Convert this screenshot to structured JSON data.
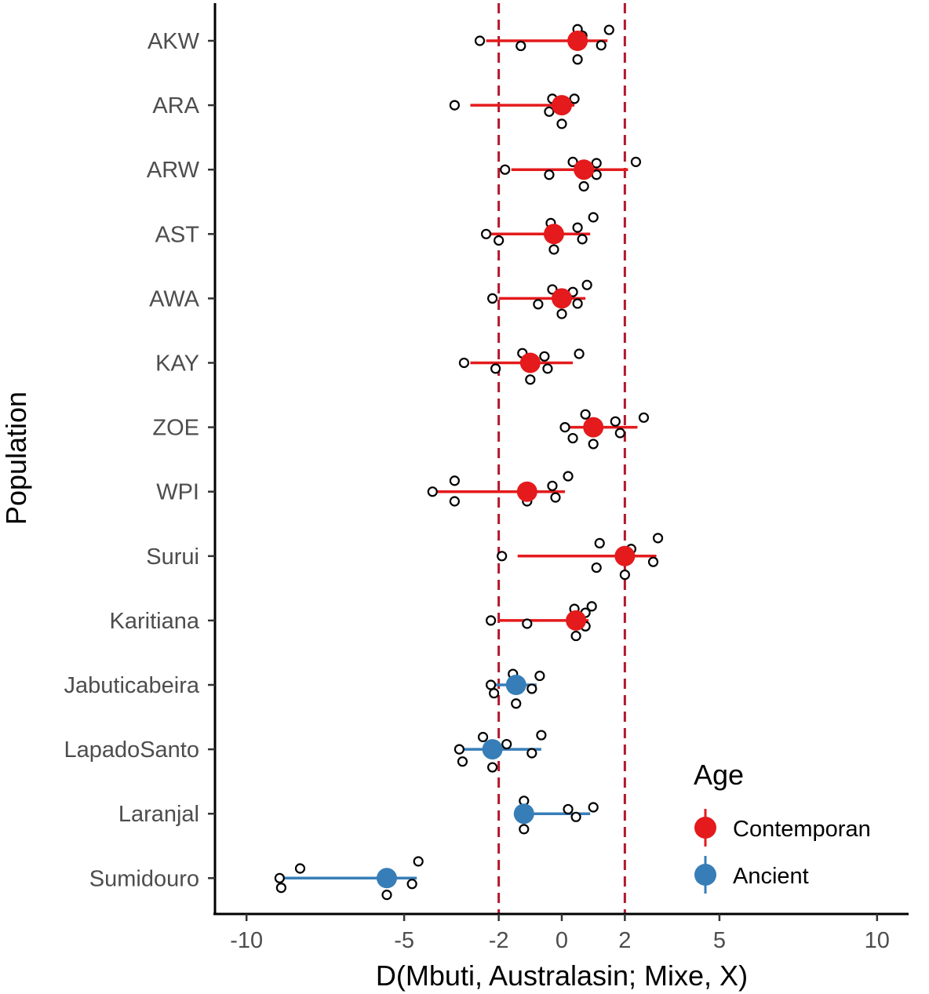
{
  "chart_data": {
    "type": "scatter",
    "xlabel": "D(Mbuti, Australasin; Mixe, X)",
    "ylabel": "Population",
    "xlim": [
      -11,
      11
    ],
    "xticks": [
      -10,
      -5,
      -2,
      0,
      2,
      5,
      10
    ],
    "xtick_labels": [
      "-10",
      "-5",
      "-2",
      "0",
      "2",
      "5",
      "10"
    ],
    "reference_lines": [
      -2,
      2
    ],
    "legend": {
      "title": "Age",
      "placement": "bottom-right",
      "entries": [
        {
          "label": "Contemporan",
          "color": "#e41a1c"
        },
        {
          "label": "Ancient",
          "color": "#377eb8"
        }
      ]
    },
    "populations": [
      {
        "name": "AKW",
        "age": "Contemporan",
        "mean": 0.5,
        "low": -2.4,
        "high": 1.45,
        "points": [
          [
            -2.6,
            0
          ],
          [
            -1.3,
            -0.08
          ],
          [
            0.5,
            0.18
          ],
          [
            0.65,
            0.08
          ],
          [
            1.5,
            0.17
          ],
          [
            1.25,
            -0.07
          ],
          [
            0.5,
            -0.29
          ]
        ]
      },
      {
        "name": "ARA",
        "age": "Contemporan",
        "mean": 0.0,
        "low": -2.9,
        "high": 0.4,
        "points": [
          [
            -3.4,
            0
          ],
          [
            -0.4,
            -0.1
          ],
          [
            -0.3,
            0.1
          ],
          [
            0.4,
            0.1
          ],
          [
            0.0,
            -0.29
          ]
        ]
      },
      {
        "name": "ARW",
        "age": "Contemporan",
        "mean": 0.7,
        "low": -1.6,
        "high": 2.1,
        "points": [
          [
            -1.8,
            0
          ],
          [
            -0.4,
            -0.08
          ],
          [
            0.35,
            0.12
          ],
          [
            1.1,
            0.1
          ],
          [
            2.35,
            0.12
          ],
          [
            1.1,
            -0.08
          ],
          [
            0.7,
            -0.26
          ]
        ]
      },
      {
        "name": "AST",
        "age": "Contemporan",
        "mean": -0.25,
        "low": -2.3,
        "high": 0.9,
        "points": [
          [
            -2.4,
            0
          ],
          [
            -2.0,
            -0.1
          ],
          [
            -0.35,
            0.17
          ],
          [
            0.5,
            0.1
          ],
          [
            1.0,
            0.26
          ],
          [
            0.65,
            -0.08
          ],
          [
            -0.25,
            -0.24
          ]
        ]
      },
      {
        "name": "AWA",
        "age": "Contemporan",
        "mean": 0.0,
        "low": -2.0,
        "high": 0.75,
        "points": [
          [
            -2.2,
            0
          ],
          [
            -0.75,
            -0.09
          ],
          [
            -0.3,
            0.14
          ],
          [
            0.35,
            0.1
          ],
          [
            0.8,
            0.21
          ],
          [
            0.5,
            -0.08
          ],
          [
            0.0,
            -0.24
          ]
        ]
      },
      {
        "name": "KAY",
        "age": "Contemporan",
        "mean": -1.0,
        "low": -2.9,
        "high": 0.35,
        "points": [
          [
            -3.1,
            0
          ],
          [
            -2.1,
            -0.09
          ],
          [
            -1.25,
            0.15
          ],
          [
            -0.55,
            0.1
          ],
          [
            0.55,
            0.14
          ],
          [
            -0.45,
            -0.09
          ],
          [
            -1.0,
            -0.26
          ]
        ]
      },
      {
        "name": "ZOE",
        "age": "Contemporan",
        "mean": 1.0,
        "low": 0.1,
        "high": 2.4,
        "points": [
          [
            0.1,
            0
          ],
          [
            0.35,
            -0.17
          ],
          [
            0.75,
            0.2
          ],
          [
            1.7,
            0.09
          ],
          [
            2.6,
            0.15
          ],
          [
            1.85,
            -0.09
          ],
          [
            1.0,
            -0.26
          ]
        ]
      },
      {
        "name": "WPI",
        "age": "Contemporan",
        "mean": -1.1,
        "low": -4.0,
        "high": 0.1,
        "points": [
          [
            -4.1,
            0
          ],
          [
            -3.4,
            0.17
          ],
          [
            -3.4,
            -0.15
          ],
          [
            -0.3,
            0.09
          ],
          [
            0.2,
            0.24
          ],
          [
            -0.2,
            -0.09
          ],
          [
            -1.1,
            -0.15
          ]
        ]
      },
      {
        "name": "Surui",
        "age": "Contemporan",
        "mean": 2.0,
        "low": -1.4,
        "high": 3.0,
        "points": [
          [
            -1.9,
            0
          ],
          [
            1.2,
            0.2
          ],
          [
            2.2,
            0.11
          ],
          [
            3.05,
            0.28
          ],
          [
            2.9,
            -0.09
          ],
          [
            1.1,
            -0.18
          ],
          [
            2.0,
            -0.29
          ]
        ]
      },
      {
        "name": "Karitiana",
        "age": "Contemporan",
        "mean": 0.45,
        "low": -2.0,
        "high": 0.85,
        "points": [
          [
            -2.25,
            0
          ],
          [
            -1.1,
            -0.05
          ],
          [
            0.4,
            0.18
          ],
          [
            0.75,
            0.12
          ],
          [
            0.95,
            0.22
          ],
          [
            0.75,
            -0.09
          ],
          [
            0.45,
            -0.24
          ]
        ]
      },
      {
        "name": "Jabuticabeira",
        "age": "Ancient",
        "mean": -1.45,
        "low": -2.2,
        "high": -0.8,
        "points": [
          [
            -2.25,
            0
          ],
          [
            -2.15,
            -0.13
          ],
          [
            -1.55,
            0.17
          ],
          [
            -0.7,
            0.14
          ],
          [
            -0.95,
            -0.06
          ],
          [
            -1.45,
            -0.29
          ]
        ]
      },
      {
        "name": "LapadoSanto",
        "age": "Ancient",
        "mean": -2.2,
        "low": -3.2,
        "high": -0.65,
        "points": [
          [
            -3.25,
            0
          ],
          [
            -3.15,
            -0.19
          ],
          [
            -2.5,
            0.19
          ],
          [
            -1.75,
            0.08
          ],
          [
            -0.65,
            0.22
          ],
          [
            -0.95,
            -0.06
          ],
          [
            -2.2,
            -0.28
          ]
        ]
      },
      {
        "name": "Laranjal",
        "age": "Ancient",
        "mean": -1.2,
        "low": -1.2,
        "high": 0.9,
        "points": [
          [
            -1.2,
            0.2
          ],
          [
            0.2,
            0.07
          ],
          [
            1.0,
            0.1
          ],
          [
            0.45,
            -0.05
          ],
          [
            -1.2,
            -0.24
          ]
        ]
      },
      {
        "name": "Sumidouro",
        "age": "Ancient",
        "mean": -5.55,
        "low": -8.9,
        "high": -4.6,
        "points": [
          [
            -8.95,
            0
          ],
          [
            -8.3,
            0.15
          ],
          [
            -8.9,
            -0.15
          ],
          [
            -4.55,
            0.26
          ],
          [
            -4.75,
            -0.09
          ],
          [
            -5.55,
            -0.26
          ]
        ]
      }
    ]
  }
}
